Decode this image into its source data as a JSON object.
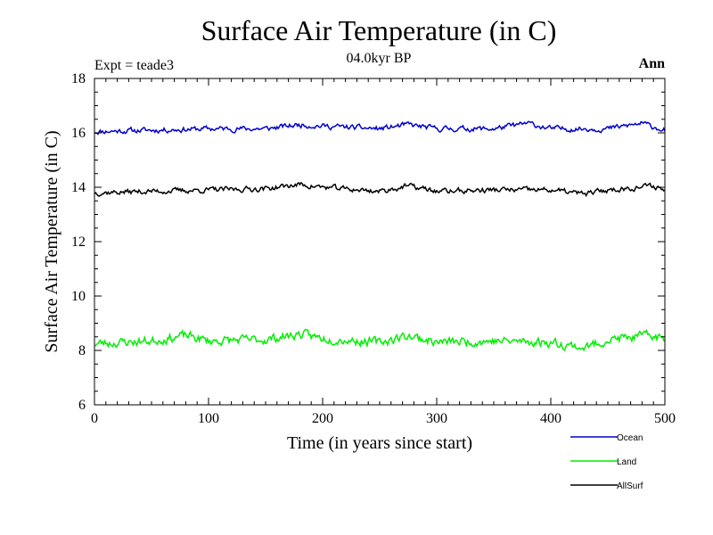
{
  "chart_data": {
    "type": "line",
    "title": "Surface Air Temperature (in C)",
    "subtitle": "04.0kyr BP",
    "experiment_label": "Expt = teade3",
    "season_label": "Ann",
    "xlabel": "Time (in years since start)",
    "ylabel": "Surface Air Temperature (in C)",
    "xlim": [
      0,
      500
    ],
    "ylim": [
      6,
      18
    ],
    "x_ticks": [
      0,
      100,
      200,
      300,
      400,
      500
    ],
    "y_ticks": [
      6,
      8,
      10,
      12,
      14,
      16,
      18
    ],
    "grid": false,
    "legend_position": "bottom-right",
    "series": [
      {
        "name": "Ocean",
        "color": "#0000cc",
        "mean": 16.15,
        "amplitude": 0.15,
        "seed": 11,
        "x": [
          0,
          50,
          100,
          150,
          180,
          200,
          250,
          275,
          300,
          350,
          380,
          400,
          450,
          480,
          500
        ],
        "values": [
          16.05,
          16.1,
          16.15,
          16.15,
          16.3,
          16.25,
          16.15,
          16.3,
          16.15,
          16.15,
          16.35,
          16.15,
          16.15,
          16.35,
          16.1
        ]
      },
      {
        "name": "Land",
        "color": "#00ee00",
        "mean": 8.35,
        "amplitude": 0.25,
        "seed": 23,
        "x": [
          0,
          50,
          80,
          100,
          150,
          180,
          200,
          250,
          275,
          300,
          350,
          400,
          430,
          450,
          490,
          500
        ],
        "values": [
          8.25,
          8.35,
          8.55,
          8.35,
          8.4,
          8.6,
          8.45,
          8.3,
          8.55,
          8.3,
          8.35,
          8.3,
          8.1,
          8.4,
          8.55,
          8.4
        ]
      },
      {
        "name": "AllSurf",
        "color": "#000000",
        "mean": 13.9,
        "amplitude": 0.15,
        "seed": 37,
        "x": [
          0,
          50,
          100,
          150,
          180,
          200,
          250,
          275,
          300,
          350,
          400,
          430,
          450,
          490,
          500
        ],
        "values": [
          13.8,
          13.85,
          13.9,
          13.95,
          14.1,
          14.0,
          13.85,
          14.05,
          13.85,
          13.9,
          13.9,
          13.75,
          13.9,
          14.05,
          13.9
        ]
      }
    ]
  }
}
